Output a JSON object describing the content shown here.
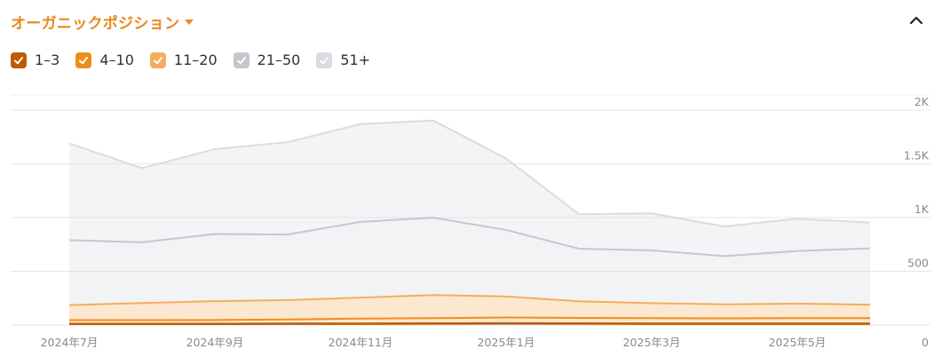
{
  "header": {
    "title": "オーガニックポジション"
  },
  "colors": {
    "pos_1_3": "#c05a00",
    "pos_4_10": "#ef8d1c",
    "pos_11_20": "#f3ae5b",
    "pos_21_50": "#c3c8cf",
    "pos_51_plus": "#d9dce1",
    "title": "#e8891f"
  },
  "icons": {
    "title_caret": "caret-down-icon",
    "collapse": "chevron-up-icon",
    "checkbox": "check-icon"
  },
  "legend": [
    {
      "label": "1–3",
      "color": "#c05a00",
      "checked": true
    },
    {
      "label": "4–10",
      "color": "#ef8d1c",
      "checked": true
    },
    {
      "label": "11–20",
      "color": "#f3ae5b",
      "checked": true
    },
    {
      "label": "21–50",
      "color": "#c3c8cf",
      "checked": true
    },
    {
      "label": "51+",
      "color": "#d9dce1",
      "checked": true
    }
  ],
  "chart_data": {
    "type": "area",
    "stacked": true,
    "x_tick_labels": [
      "2024年7月",
      "2024年9月",
      "2024年11月",
      "2025年1月",
      "2025年3月",
      "2025年5月"
    ],
    "y_tick_labels": [
      "0",
      "500",
      "1K",
      "1.5K",
      "2K"
    ],
    "ylim": [
      0,
      2000
    ],
    "grid": true,
    "series": [
      {
        "name": "1–3",
        "values": [
          10,
          10,
          10,
          12,
          12,
          14,
          15,
          14,
          12,
          12,
          12,
          12
        ]
      },
      {
        "name": "4–10",
        "values": [
          35,
          35,
          37,
          40,
          48,
          50,
          55,
          52,
          52,
          50,
          52,
          52
        ]
      },
      {
        "name": "11–20",
        "values": [
          140,
          160,
          175,
          180,
          195,
          215,
          195,
          155,
          140,
          130,
          135,
          125
        ]
      },
      {
        "name": "21–50",
        "values": [
          605,
          565,
          625,
          610,
          705,
          720,
          620,
          490,
          490,
          450,
          490,
          525
        ]
      },
      {
        "name": "51+",
        "values": [
          900,
          690,
          790,
          860,
          910,
          905,
          665,
          320,
          345,
          275,
          300,
          240
        ]
      }
    ]
  }
}
